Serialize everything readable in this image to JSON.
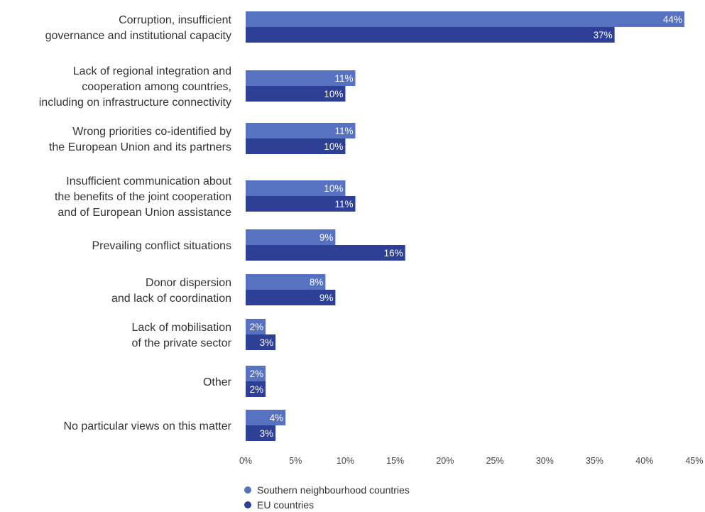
{
  "colors": {
    "southern": "#5872c2",
    "eu": "#2e4096"
  },
  "chart_data": {
    "type": "bar",
    "orientation": "horizontal",
    "xlim": [
      0,
      45
    ],
    "ticks": [
      "0%",
      "5%",
      "10%",
      "15%",
      "20%",
      "25%",
      "30%",
      "35%",
      "40%",
      "45%"
    ],
    "grid": false,
    "legend_position": "bottom-left",
    "categories": [
      [
        "Corruption, insufficient",
        "governance and institutional capacity"
      ],
      [
        "Lack of regional integration and",
        "cooperation among countries,",
        "including on infrastructure connectivity"
      ],
      [
        "Wrong priorities co-identified by",
        "the European Union and its partners"
      ],
      [
        "Insufficient communication about",
        "the benefits of the joint cooperation",
        "and of European Union assistance"
      ],
      [
        "Prevailing conflict situations"
      ],
      [
        "Donor dispersion",
        "and lack of coordination"
      ],
      [
        "Lack of mobilisation",
        "of the private sector"
      ],
      [
        "Other"
      ],
      [
        "No particular views on this matter"
      ]
    ],
    "series": [
      {
        "name": "Southern neighbourhood countries",
        "values": [
          44,
          11,
          11,
          10,
          9,
          8,
          2,
          2,
          4
        ]
      },
      {
        "name": "EU countries",
        "values": [
          37,
          10,
          10,
          11,
          16,
          9,
          3,
          2,
          3
        ]
      }
    ]
  }
}
